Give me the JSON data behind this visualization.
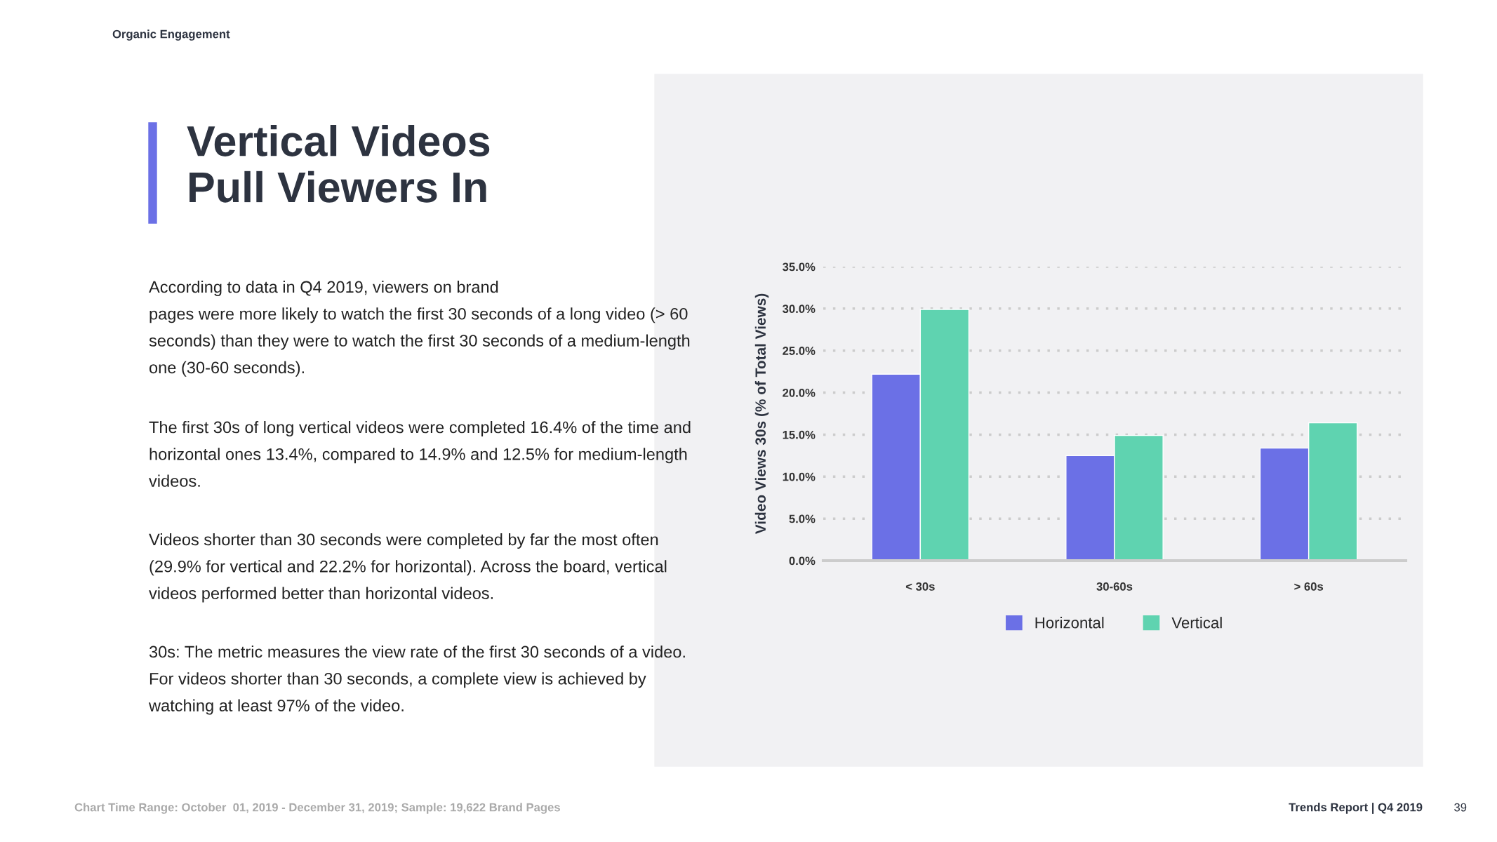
{
  "chart_data": {
    "type": "bar",
    "title": "Vertical Videos\nPull Viewers In",
    "ylabel": "Video Views 30s (% of Total Views)",
    "categories": [
      "< 30s",
      "30-60s",
      "> 60s"
    ],
    "series": [
      {
        "name": "Horizontal",
        "color": "#6b70e6",
        "values": [
          22.2,
          12.5,
          13.4
        ]
      },
      {
        "name": "Vertical",
        "color": "#5fd3b0",
        "values": [
          29.9,
          14.9,
          16.4
        ]
      }
    ],
    "ylim": [
      0,
      35
    ],
    "yticks": [
      {
        "value": 0,
        "label": "0.0%"
      },
      {
        "value": 5,
        "label": "5.0%"
      },
      {
        "value": 10,
        "label": "10.0%"
      },
      {
        "value": 15,
        "label": "15.0%"
      },
      {
        "value": 20,
        "label": "20.0%"
      },
      {
        "value": 25,
        "label": "25.0%"
      },
      {
        "value": 30,
        "label": "30.0%"
      },
      {
        "value": 35,
        "label": "35.0%"
      }
    ],
    "grid": "y",
    "legend": "bottom",
    "annotations": [
      "Organic Engagement",
      "According to data in Q4 2019, viewers on brand\npages were more likely to watch the first 30 seconds of a long video (> 60\nseconds) than they were to watch the first 30 seconds of a medium-length\none (30-60 seconds).",
      "The first 30s of long vertical videos were completed 16.4% of the time and\nhorizontal ones 13.4%, compared to 14.9% and 12.5% for medium-length\nvideos.",
      "Videos shorter than 30 seconds were completed by far the most often\n(29.9% for vertical and 22.2% for horizontal). Across the board, vertical\nvideos performed better than horizontal videos.",
      "30s: The metric measures the view rate of the first 30 seconds of a video.\nFor videos shorter than 30 seconds, a complete view is achieved by\nwatching at least 97% of the video.",
      "Chart Time Range: October  01, 2019 - December 31, 2019; Sample: 19,622 Brand Pages",
      "Trends Report | Q4 2019",
      "39"
    ]
  }
}
